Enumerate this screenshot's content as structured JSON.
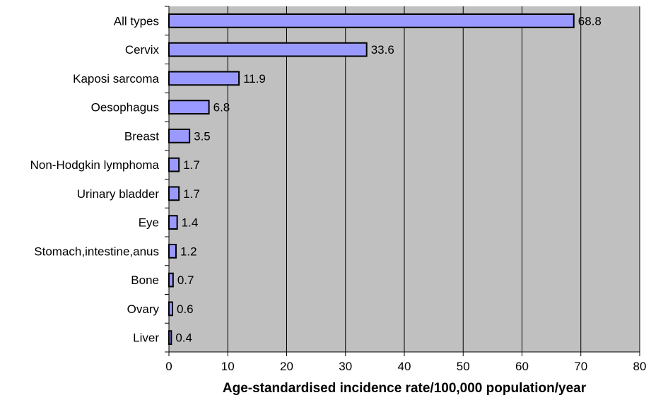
{
  "chart_data": {
    "type": "bar",
    "orientation": "horizontal",
    "categories": [
      "All types",
      "Cervix",
      "Kaposi sarcoma",
      "Oesophagus",
      "Breast",
      "Non-Hodgkin lymphoma",
      "Urinary bladder",
      "Eye",
      "Stomach,intestine,anus",
      "Bone",
      "Ovary",
      "Liver"
    ],
    "values": [
      68.8,
      33.6,
      11.9,
      6.8,
      3.5,
      1.7,
      1.7,
      1.4,
      1.2,
      0.7,
      0.6,
      0.4
    ],
    "value_labels": [
      "68.8",
      "33.6",
      "11.9",
      "6.8",
      "3.5",
      "1.7",
      "1.7",
      "1.4",
      "1.2",
      "0.7",
      "0.6",
      "0.4"
    ],
    "xlabel": "Age-standardised incidence rate/100,000 population/year",
    "ylabel": "",
    "xlim": [
      0,
      80
    ],
    "xticks": [
      0,
      10,
      20,
      30,
      40,
      50,
      60,
      70,
      80
    ],
    "grid": "vertical",
    "legend": "none",
    "colors": {
      "bar_fill": "#9999ff",
      "bar_stroke": "#000000",
      "plot_background": "#c0c0c0",
      "gridline": "#000000"
    }
  }
}
